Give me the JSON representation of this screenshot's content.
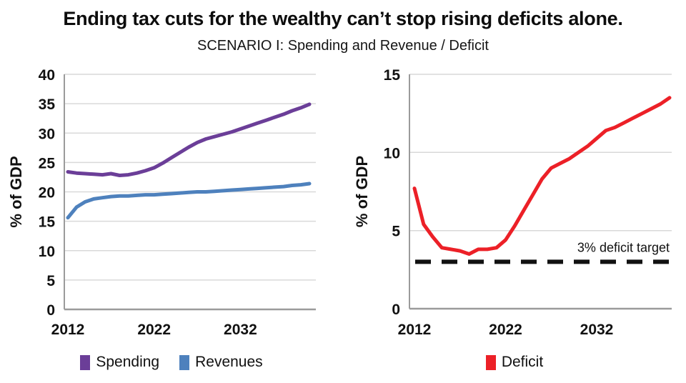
{
  "header": {
    "title": "Ending tax cuts for the wealthy can’t stop rising deficits alone.",
    "subtitle": "SCENARIO I: Spending and Revenue / Deficit"
  },
  "colors": {
    "spending": "#6B3E98",
    "revenues": "#4E81BD",
    "deficit": "#EC2027",
    "target": "#111111",
    "gridline": "#D9D9D9",
    "axis": "#9B9B9B",
    "text": "#111111"
  },
  "chart_data": [
    {
      "type": "line",
      "name": "spending-revenue",
      "ylabel": "% of GDP",
      "ylim": [
        0,
        40
      ],
      "yticks": [
        0,
        5,
        10,
        15,
        20,
        25,
        30,
        35,
        40
      ],
      "xticks": [
        2012,
        2022,
        2032
      ],
      "grid": true,
      "legend_position": "bottom",
      "x": [
        2012,
        2013,
        2014,
        2015,
        2016,
        2017,
        2018,
        2019,
        2020,
        2021,
        2022,
        2023,
        2024,
        2025,
        2026,
        2027,
        2028,
        2029,
        2030,
        2031,
        2032,
        2033,
        2034,
        2035,
        2036,
        2037,
        2038,
        2039,
        2040
      ],
      "series": [
        {
          "name": "Spending",
          "color": "#6B3E98",
          "values": [
            23.4,
            23.2,
            23.1,
            23.0,
            22.9,
            23.1,
            22.8,
            22.9,
            23.2,
            23.6,
            24.1,
            24.9,
            25.8,
            26.7,
            27.6,
            28.4,
            29.0,
            29.4,
            29.8,
            30.2,
            30.7,
            31.2,
            31.7,
            32.2,
            32.7,
            33.2,
            33.8,
            34.3,
            34.9
          ]
        },
        {
          "name": "Revenues",
          "color": "#4E81BD",
          "values": [
            15.6,
            17.4,
            18.3,
            18.8,
            19.0,
            19.2,
            19.3,
            19.3,
            19.4,
            19.5,
            19.5,
            19.6,
            19.7,
            19.8,
            19.9,
            20.0,
            20.0,
            20.1,
            20.2,
            20.3,
            20.4,
            20.5,
            20.6,
            20.7,
            20.8,
            20.9,
            21.1,
            21.2,
            21.4
          ]
        }
      ]
    },
    {
      "type": "line",
      "name": "deficit",
      "ylabel": "% of GDP",
      "ylim": [
        0,
        15
      ],
      "yticks": [
        0,
        5,
        10,
        15
      ],
      "xticks": [
        2012,
        2022,
        2032
      ],
      "grid": true,
      "legend_position": "bottom",
      "x": [
        2012,
        2013,
        2014,
        2015,
        2016,
        2017,
        2018,
        2019,
        2020,
        2021,
        2022,
        2023,
        2024,
        2025,
        2026,
        2027,
        2028,
        2029,
        2030,
        2031,
        2032,
        2033,
        2034,
        2035,
        2036,
        2037,
        2038,
        2039,
        2040
      ],
      "series": [
        {
          "name": "Deficit",
          "color": "#EC2027",
          "values": [
            7.7,
            5.4,
            4.6,
            3.9,
            3.8,
            3.7,
            3.5,
            3.8,
            3.8,
            3.9,
            4.4,
            5.3,
            6.3,
            7.3,
            8.3,
            9.0,
            9.3,
            9.6,
            10.0,
            10.4,
            10.9,
            11.4,
            11.6,
            11.9,
            12.2,
            12.5,
            12.8,
            13.1,
            13.5
          ]
        }
      ],
      "target_line": {
        "value": 3,
        "style": "dashed",
        "color": "#111111"
      },
      "annotation": {
        "text": "3% deficit target",
        "value": 3
      }
    }
  ],
  "legends": {
    "left": [
      {
        "label": "Spending",
        "color": "#6B3E98"
      },
      {
        "label": "Revenues",
        "color": "#4E81BD"
      }
    ],
    "right": [
      {
        "label": "Deficit",
        "color": "#EC2027"
      }
    ]
  }
}
